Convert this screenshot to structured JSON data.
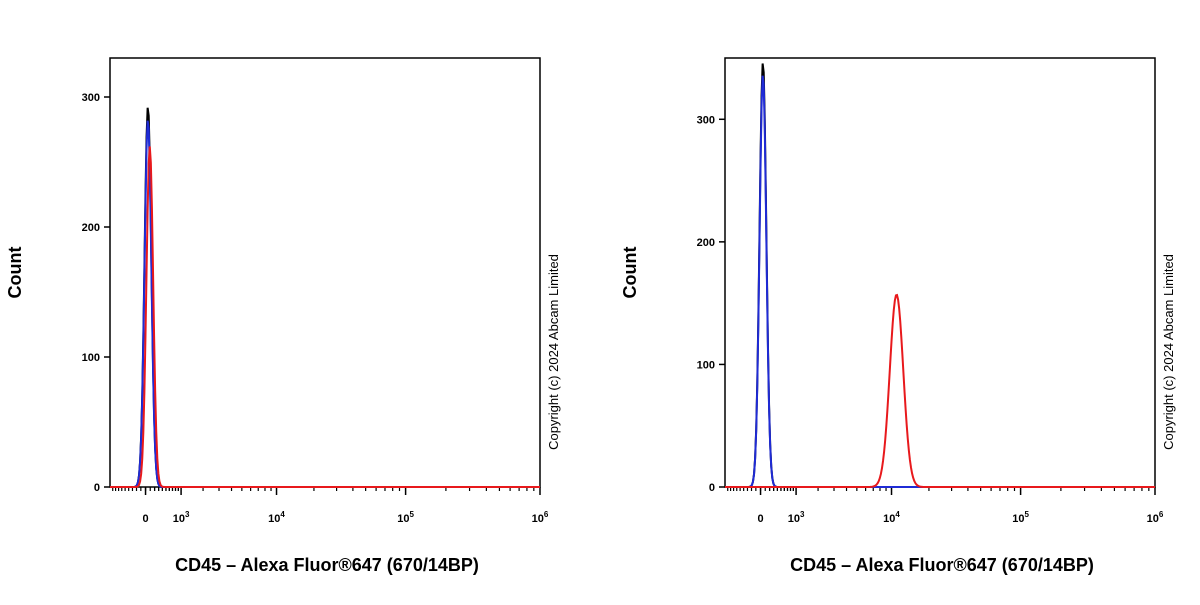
{
  "chart_data": [
    {
      "type": "line",
      "title": "",
      "xlabel": "CD45 – Alexa Fluor®647 (670/14BP)",
      "ylabel": "Count",
      "x_scale": "biexponential",
      "xticks": [
        {
          "value": 0,
          "base": "0",
          "exp": ""
        },
        {
          "value": 1000,
          "base": "10",
          "exp": "3"
        },
        {
          "value": 10000,
          "base": "10",
          "exp": "4"
        },
        {
          "value": 100000,
          "base": "10",
          "exp": "5"
        },
        {
          "value": 1000000,
          "base": "10",
          "exp": "6"
        }
      ],
      "xlim": [
        -1000,
        1000000
      ],
      "yticks": [
        0,
        100,
        200,
        300
      ],
      "ylim": [
        0,
        330
      ],
      "grid": false,
      "watermark": "Copyright (c) 2024 Abcam Limited",
      "series": [
        {
          "color": "#000000",
          "peak_x": 50,
          "peak_y": 293,
          "spread": 0.025
        },
        {
          "color": "#1f2bd6",
          "peak_x": 50,
          "peak_y": 283,
          "spread": 0.025
        },
        {
          "color": "#e8191c",
          "peak_x": 90,
          "peak_y": 262,
          "spread": 0.025
        }
      ]
    },
    {
      "type": "line",
      "title": "",
      "xlabel": "CD45 – Alexa Fluor®647 (670/14BP)",
      "ylabel": "Count",
      "x_scale": "biexponential",
      "xticks": [
        {
          "value": 0,
          "base": "0",
          "exp": ""
        },
        {
          "value": 1000,
          "base": "10",
          "exp": "3"
        },
        {
          "value": 10000,
          "base": "10",
          "exp": "4"
        },
        {
          "value": 100000,
          "base": "10",
          "exp": "5"
        },
        {
          "value": 1000000,
          "base": "10",
          "exp": "6"
        }
      ],
      "xlim": [
        -1000,
        1000000
      ],
      "yticks": [
        0,
        100,
        200,
        300
      ],
      "ylim": [
        0,
        350
      ],
      "grid": false,
      "watermark": "Copyright (c) 2024 Abcam Limited",
      "series": [
        {
          "color": "#000000",
          "peak_x": 50,
          "peak_y": 347,
          "spread": 0.025
        },
        {
          "color": "#1f2bd6",
          "peak_x": 50,
          "peak_y": 337,
          "spread": 0.025
        },
        {
          "color": "#e8191c",
          "peak_x": 11000,
          "peak_y": 157,
          "spread": 0.05
        }
      ]
    }
  ]
}
